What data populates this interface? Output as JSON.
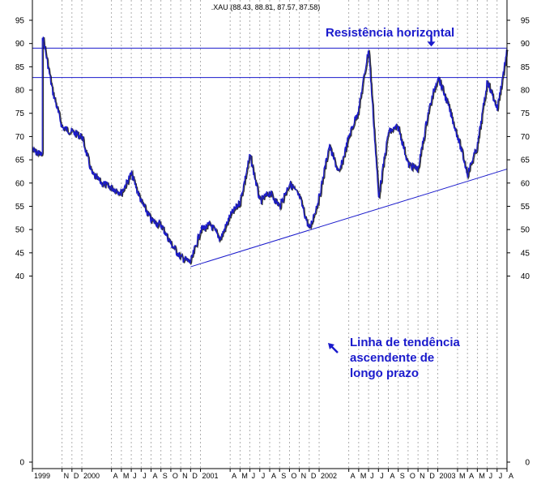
{
  "chart_data": {
    "type": "line",
    "title": "",
    "subtitle": ".XAU (88.43, 88.81, 87.57, 87.58)",
    "xlabel": "",
    "ylabel": "",
    "ylim": [
      0,
      95
    ],
    "y_ticks": [
      0,
      40,
      45,
      50,
      55,
      60,
      65,
      70,
      75,
      80,
      85,
      90,
      95
    ],
    "grid": true,
    "x_axis": {
      "start": "1999-08",
      "end": "2003-08",
      "labels": [
        {
          "text": "1999",
          "date": "1999-08"
        },
        {
          "text": "N",
          "date": "1999-11"
        },
        {
          "text": "D",
          "date": "1999-12"
        },
        {
          "text": "2000",
          "date": "2000-01"
        },
        {
          "text": "A",
          "date": "2000-04"
        },
        {
          "text": "M",
          "date": "2000-05"
        },
        {
          "text": "J",
          "date": "2000-06"
        },
        {
          "text": "J",
          "date": "2000-07"
        },
        {
          "text": "A",
          "date": "2000-08"
        },
        {
          "text": "S",
          "date": "2000-09"
        },
        {
          "text": "O",
          "date": "2000-10"
        },
        {
          "text": "N",
          "date": "2000-11"
        },
        {
          "text": "D",
          "date": "2000-12"
        },
        {
          "text": "2001",
          "date": "2001-01"
        },
        {
          "text": "A",
          "date": "2001-04"
        },
        {
          "text": "M",
          "date": "2001-05"
        },
        {
          "text": "J",
          "date": "2001-06"
        },
        {
          "text": "J",
          "date": "2001-07"
        },
        {
          "text": "A",
          "date": "2001-08"
        },
        {
          "text": "S",
          "date": "2001-09"
        },
        {
          "text": "O",
          "date": "2001-10"
        },
        {
          "text": "N",
          "date": "2001-11"
        },
        {
          "text": "D",
          "date": "2001-12"
        },
        {
          "text": "2002",
          "date": "2002-01"
        },
        {
          "text": "A",
          "date": "2002-04"
        },
        {
          "text": "M",
          "date": "2002-05"
        },
        {
          "text": "J",
          "date": "2002-06"
        },
        {
          "text": "J",
          "date": "2002-07"
        },
        {
          "text": "A",
          "date": "2002-08"
        },
        {
          "text": "S",
          "date": "2002-09"
        },
        {
          "text": "O",
          "date": "2002-10"
        },
        {
          "text": "N",
          "date": "2002-11"
        },
        {
          "text": "D",
          "date": "2002-12"
        },
        {
          "text": "2003",
          "date": "2003-01"
        },
        {
          "text": "M",
          "date": "2003-03"
        },
        {
          "text": "A",
          "date": "2003-04"
        },
        {
          "text": "M",
          "date": "2003-05"
        },
        {
          "text": "J",
          "date": "2003-06"
        },
        {
          "text": "J",
          "date": "2003-07"
        },
        {
          "text": "A",
          "date": "2003-08"
        }
      ]
    },
    "series": [
      {
        "color": "#1a1acc",
        "points": [
          [
            "1999-08",
            67
          ],
          [
            "1999-09",
            66
          ],
          [
            "1999-09",
            92
          ],
          [
            "1999-10",
            80
          ],
          [
            "1999-11",
            72
          ],
          [
            "1999-12",
            71
          ],
          [
            "2000-01",
            70
          ],
          [
            "2000-02",
            62
          ],
          [
            "2000-03",
            60
          ],
          [
            "2000-04",
            59
          ],
          [
            "2000-05",
            58
          ],
          [
            "2000-06",
            62
          ],
          [
            "2000-07",
            56
          ],
          [
            "2000-08",
            52
          ],
          [
            "2000-09",
            51
          ],
          [
            "2000-10",
            47
          ],
          [
            "2000-11",
            44
          ],
          [
            "2000-12",
            43
          ],
          [
            "2001-01",
            50
          ],
          [
            "2001-02",
            51
          ],
          [
            "2001-03",
            48
          ],
          [
            "2001-04",
            53
          ],
          [
            "2001-05",
            56
          ],
          [
            "2001-06",
            66
          ],
          [
            "2001-07",
            56
          ],
          [
            "2001-08",
            58
          ],
          [
            "2001-09",
            55
          ],
          [
            "2001-10",
            60
          ],
          [
            "2001-11",
            57
          ],
          [
            "2001-12",
            50
          ],
          [
            "2002-01",
            57
          ],
          [
            "2002-02",
            68
          ],
          [
            "2002-03",
            62
          ],
          [
            "2002-04",
            70
          ],
          [
            "2002-05",
            76
          ],
          [
            "2002-06",
            89
          ],
          [
            "2002-07",
            57
          ],
          [
            "2002-08",
            71
          ],
          [
            "2002-09",
            72
          ],
          [
            "2002-10",
            64
          ],
          [
            "2002-11",
            63
          ],
          [
            "2002-12",
            75
          ],
          [
            "2003-01",
            83
          ],
          [
            "2003-02",
            77
          ],
          [
            "2003-03",
            70
          ],
          [
            "2003-04",
            62
          ],
          [
            "2003-05",
            68
          ],
          [
            "2003-06",
            82
          ],
          [
            "2003-07",
            76
          ],
          [
            "2003-08",
            88.5
          ]
        ]
      }
    ],
    "reference_lines": [
      {
        "kind": "horizontal",
        "y": 89,
        "color": "#1a1acc"
      },
      {
        "kind": "horizontal",
        "y": 82.7,
        "color": "#1a1acc"
      },
      {
        "kind": "trend",
        "from": [
          "2000-12",
          42
        ],
        "to": [
          "2003-08",
          63
        ],
        "color": "#1a1acc"
      }
    ],
    "annotations": [
      {
        "text": "Resistência horizontal",
        "arrow": "down",
        "arrow_at": [
          "2003-01",
          89
        ]
      },
      {
        "lines": [
          "Linha de tendência",
          "ascendente de",
          "longo prazo"
        ],
        "arrow": "up-left",
        "arrow_at": [
          "2002-05",
          51
        ]
      }
    ]
  }
}
